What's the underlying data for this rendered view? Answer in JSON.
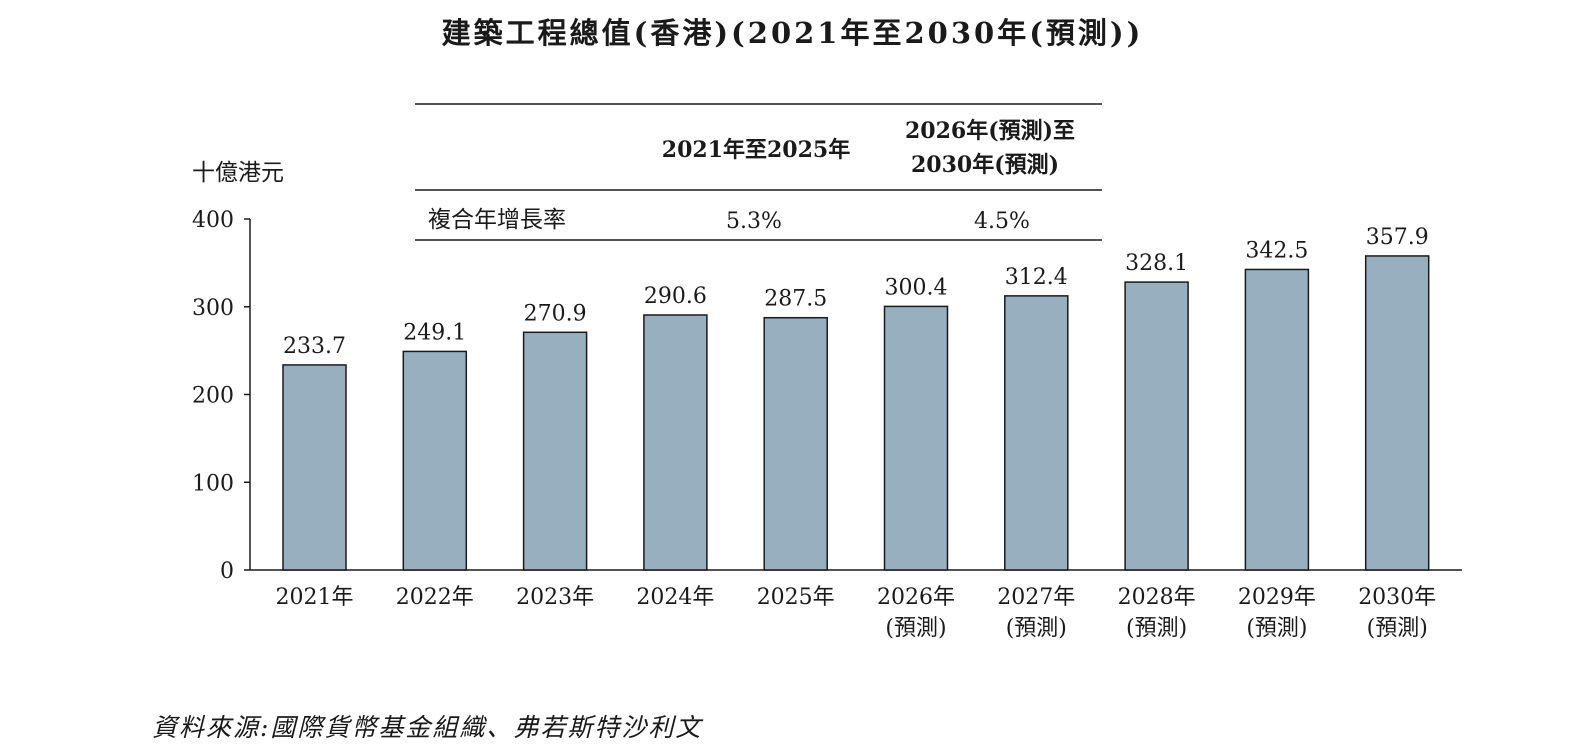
{
  "title": "建築工程總值(香港)(2021年至2030年(預測))",
  "source": "資料來源:國際貨幣基金組織、弗若斯特沙利文",
  "cagr_table": {
    "row_label": "複合年增長率",
    "columns": [
      {
        "header_lines": [
          "2021年至2025年"
        ],
        "value": "5.3%"
      },
      {
        "header_lines": [
          "2026年(預測)至",
          "2030年(預測)"
        ],
        "value": "4.5%"
      }
    ]
  },
  "chart_data": {
    "type": "bar",
    "ylabel": "十億港元",
    "ylim": [
      0,
      400
    ],
    "yticks": [
      0,
      100,
      200,
      300,
      400
    ],
    "categories": [
      [
        "2021年"
      ],
      [
        "2022年"
      ],
      [
        "2023年"
      ],
      [
        "2024年"
      ],
      [
        "2025年"
      ],
      [
        "2026年",
        "(預測)"
      ],
      [
        "2027年",
        "(預測)"
      ],
      [
        "2028年",
        "(預測)"
      ],
      [
        "2029年",
        "(預測)"
      ],
      [
        "2030年",
        "(預測)"
      ]
    ],
    "values": [
      233.7,
      249.1,
      270.9,
      290.6,
      287.5,
      300.4,
      312.4,
      328.1,
      342.5,
      357.9
    ],
    "value_labels": [
      "233.7",
      "249.1",
      "270.9",
      "290.6",
      "287.5",
      "300.4",
      "312.4",
      "328.1",
      "342.5",
      "357.9"
    ],
    "bar_color": "#98afc0",
    "grid": false
  }
}
